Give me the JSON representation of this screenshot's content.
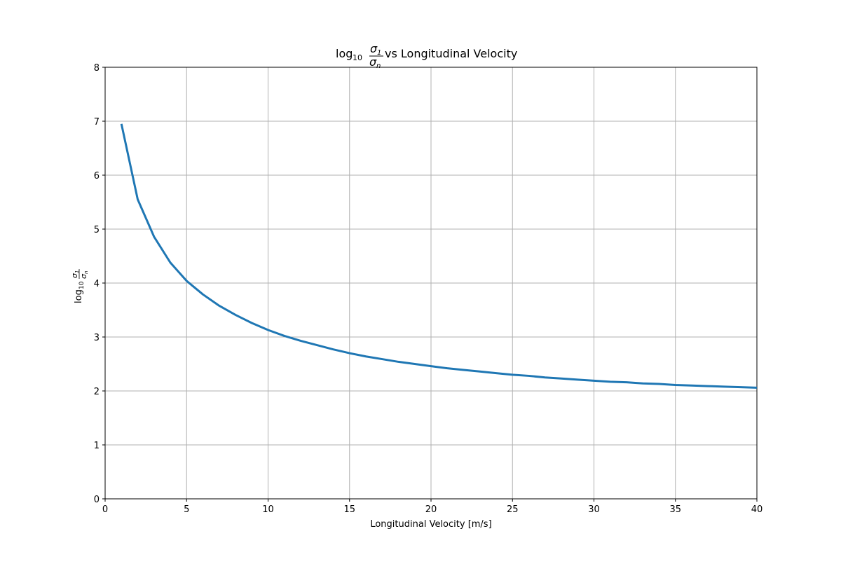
{
  "chart_data": {
    "type": "line",
    "title": {
      "prefix": "log",
      "prefix_sub": "10",
      "fraction_num": "σ",
      "fraction_num_sub": "1",
      "fraction_den": "σ",
      "fraction_den_sub": "n",
      "suffix": " vs Longitudinal Velocity"
    },
    "xlabel": "Longitudinal Velocity [m/s]",
    "ylabel": {
      "prefix": "log",
      "prefix_sub": "10",
      "fraction_num": "σ",
      "fraction_num_sub": "1",
      "fraction_den": "σ",
      "fraction_den_sub": "n"
    },
    "xlim": [
      0,
      40
    ],
    "ylim": [
      0,
      8
    ],
    "xticks": [
      0,
      5,
      10,
      15,
      20,
      25,
      30,
      35,
      40
    ],
    "yticks": [
      0,
      1,
      2,
      3,
      4,
      5,
      6,
      7,
      8
    ],
    "grid": true,
    "line_color": "#1f77b4",
    "series": [
      {
        "x": [
          1,
          2,
          3,
          4,
          5,
          6,
          7,
          8,
          9,
          10,
          11,
          12,
          13,
          14,
          15,
          16,
          17,
          18,
          19,
          20,
          21,
          22,
          23,
          24,
          25,
          26,
          27,
          28,
          29,
          30,
          31,
          32,
          33,
          34,
          35,
          36,
          37,
          38,
          39,
          40
        ],
        "values": [
          6.95,
          5.55,
          4.86,
          4.38,
          4.04,
          3.79,
          3.58,
          3.41,
          3.26,
          3.13,
          3.02,
          2.93,
          2.85,
          2.77,
          2.7,
          2.64,
          2.59,
          2.54,
          2.5,
          2.46,
          2.42,
          2.39,
          2.36,
          2.33,
          2.3,
          2.28,
          2.25,
          2.23,
          2.21,
          2.19,
          2.17,
          2.16,
          2.14,
          2.13,
          2.11,
          2.1,
          2.09,
          2.08,
          2.07,
          2.06
        ]
      }
    ]
  }
}
